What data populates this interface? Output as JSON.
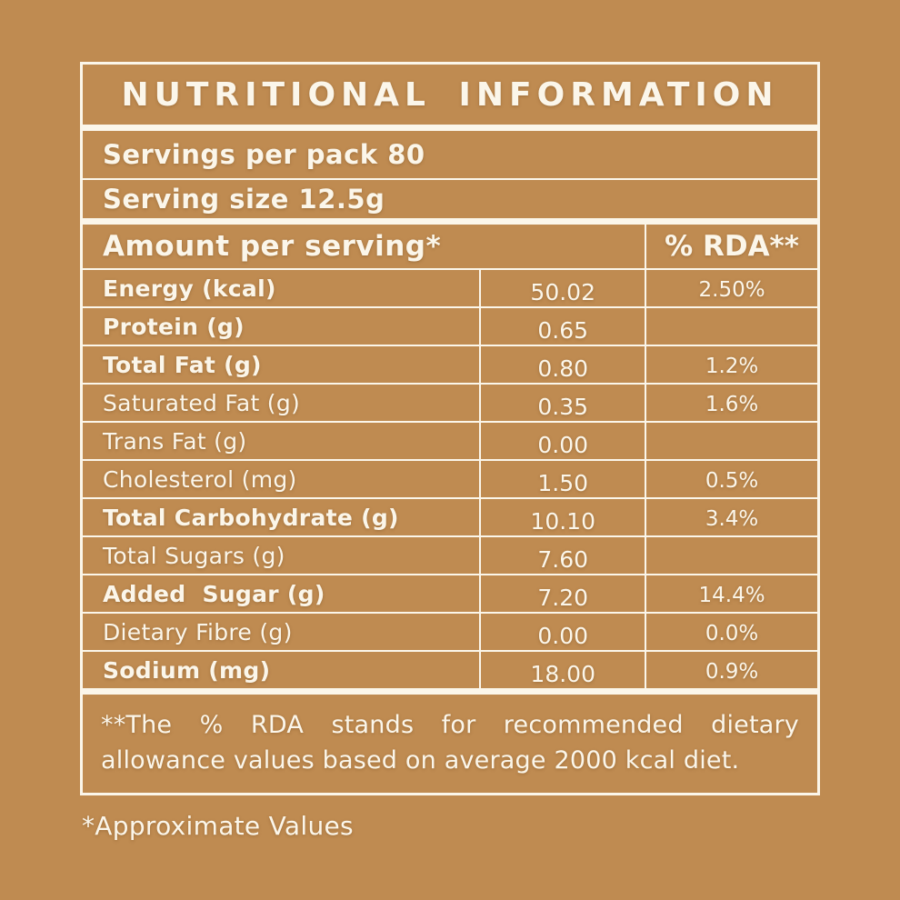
{
  "colors": {
    "background": "#BF8B51",
    "foreground": "#FBF6EA"
  },
  "label": {
    "title": "NUTRITIONAL INFORMATION",
    "servings_per_pack": "Servings per pack 80",
    "serving_size": "Serving size 12.5g",
    "header": {
      "amount": "Amount per serving*",
      "rda": "% RDA**"
    },
    "rows": [
      {
        "name": "Energy (kcal)",
        "amount": "50.02",
        "rda": "2.50%",
        "bold": true
      },
      {
        "name": "Protein (g)",
        "amount": "0.65",
        "rda": "",
        "bold": true
      },
      {
        "name": "Total Fat (g)",
        "amount": "0.80",
        "rda": "1.2%",
        "bold": true
      },
      {
        "name": "Saturated Fat (g)",
        "amount": "0.35",
        "rda": "1.6%",
        "bold": false
      },
      {
        "name": "Trans Fat (g)",
        "amount": "0.00",
        "rda": "",
        "bold": false
      },
      {
        "name": "Cholesterol (mg)",
        "amount": "1.50",
        "rda": "0.5%",
        "bold": false
      },
      {
        "name": "Total Carbohydrate (g)",
        "amount": "10.10",
        "rda": "3.4%",
        "bold": true
      },
      {
        "name": "Total Sugars (g)",
        "amount": "7.60",
        "rda": "",
        "bold": false
      },
      {
        "name": "Added  Sugar (g)",
        "amount": "7.20",
        "rda": "14.4%",
        "bold": true
      },
      {
        "name": "Dietary Fibre (g)",
        "amount": "0.00",
        "rda": "0.0%",
        "bold": false
      },
      {
        "name": "Sodium (mg)",
        "amount": "18.00",
        "rda": "0.9%",
        "bold": true
      }
    ],
    "footnote": "**The % RDA stands for recommended dietary allowance values based on average 2000 kcal diet.",
    "approximate": "*Approximate Values"
  }
}
